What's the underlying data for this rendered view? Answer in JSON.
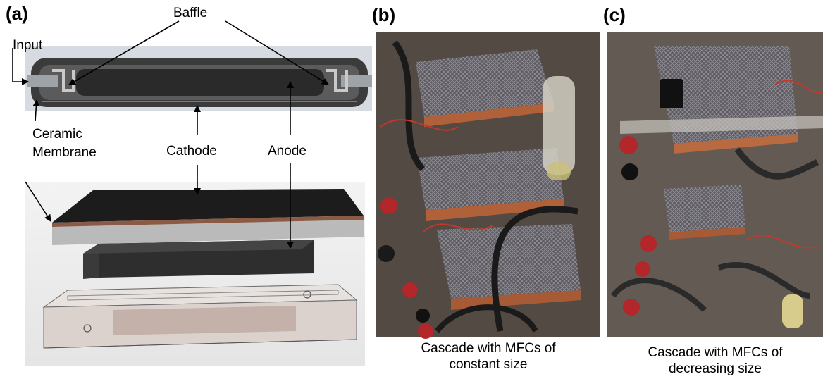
{
  "panels": [
    {
      "letter": "(a)"
    },
    {
      "letter": "(b)"
    },
    {
      "letter": "(c)"
    }
  ],
  "annotations": {
    "baffle": "Baffle",
    "input": "Input",
    "ceramic_membrane_line1": "Ceramic",
    "ceramic_membrane_line2": "Membrane",
    "cathode": "Cathode",
    "anode": "Anode"
  },
  "captions": {
    "b_line1": "Cascade with MFCs of",
    "b_line2": "constant size",
    "c_line1": "Cascade with MFCs of",
    "c_line2": "decreasing size"
  },
  "colors": {
    "housing": "#3a3a3a",
    "cell_dark": "#1e1e1e",
    "membrane_edge": "#8a5a44",
    "acrylic": "#d9d2cf",
    "photo_bg": "#6b5d52"
  }
}
